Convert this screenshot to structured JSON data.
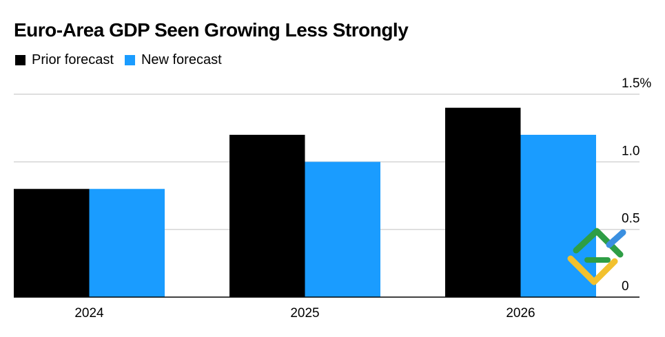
{
  "header": {
    "title": "Euro-Area GDP Seen Growing Less Strongly"
  },
  "legend": {
    "items": [
      {
        "label": "Prior forecast",
        "color": "#000000"
      },
      {
        "label": "New forecast",
        "color": "#1a9cff"
      }
    ]
  },
  "chart_data": {
    "type": "bar",
    "title": "Euro-Area GDP Seen Growing Less Strongly",
    "categories": [
      "2024",
      "2025",
      "2026"
    ],
    "series": [
      {
        "name": "Prior forecast",
        "color": "#000000",
        "values": [
          0.8,
          1.2,
          1.4
        ]
      },
      {
        "name": "New forecast",
        "color": "#1a9cff",
        "values": [
          0.8,
          1.0,
          1.2
        ]
      }
    ],
    "ylim": [
      0,
      1.5
    ],
    "yticks": [
      0,
      0.5,
      1.0,
      1.5
    ],
    "ytick_labels": [
      "0",
      "0.5",
      "1.0",
      "1.5%"
    ],
    "xlabel": "",
    "ylabel": "",
    "y_axis_side": "right",
    "grid": true,
    "legend_position": "top-left"
  }
}
